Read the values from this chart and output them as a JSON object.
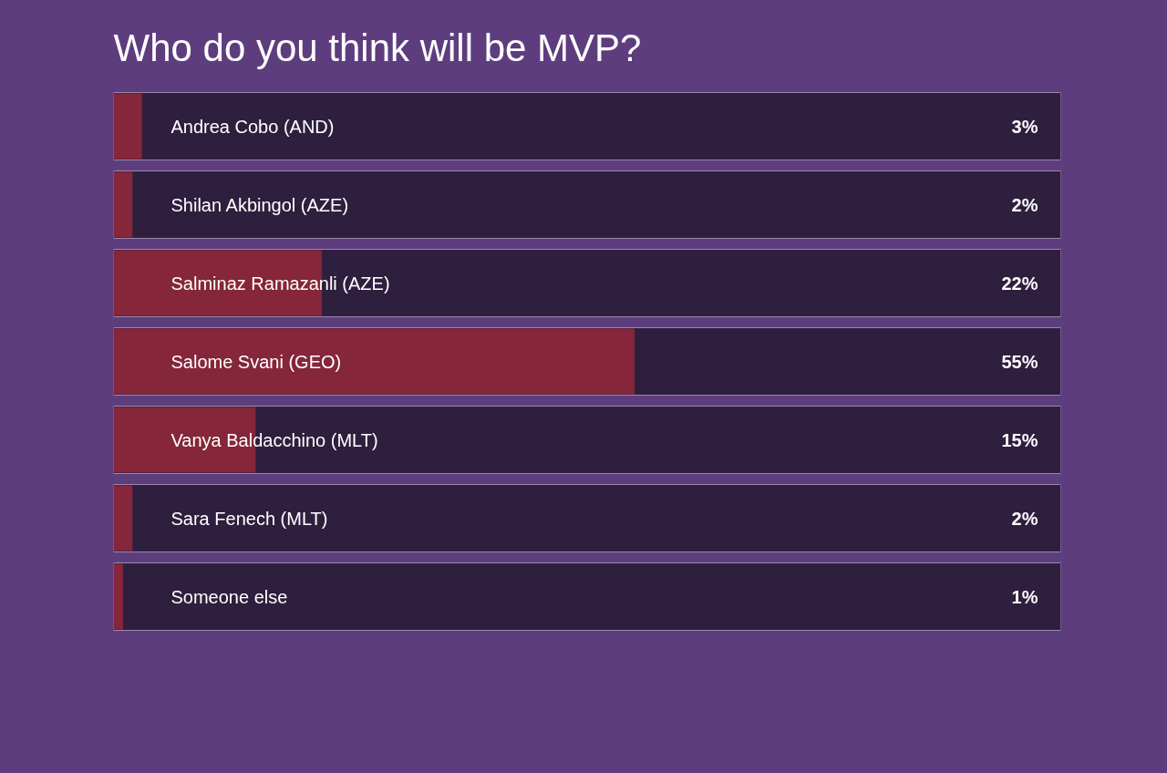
{
  "chart_data": {
    "type": "bar",
    "orientation": "horizontal",
    "title": "Who do you think will be MVP?",
    "categories": [
      "Andrea Cobo (AND)",
      "Shilan Akbingol (AZE)",
      "Salminaz Ramazanli (AZE)",
      "Salome Svani (GEO)",
      "Vanya Baldacchino (MLT)",
      "Sara Fenech (MLT)",
      "Someone else"
    ],
    "values": [
      3,
      2,
      22,
      55,
      15,
      2,
      1
    ],
    "value_labels": [
      "3%",
      "2%",
      "22%",
      "55%",
      "15%",
      "2%",
      "1%"
    ],
    "color": "#85263a",
    "xlim": [
      0,
      100
    ]
  }
}
